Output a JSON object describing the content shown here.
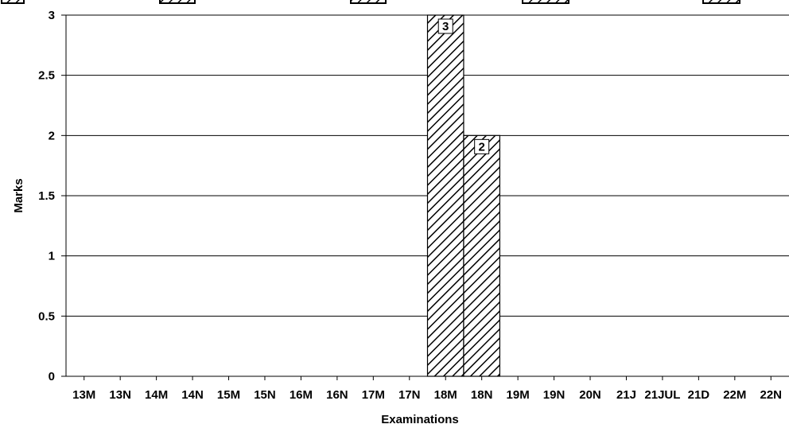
{
  "chart_data": {
    "type": "bar",
    "categories": [
      "13M",
      "13N",
      "14M",
      "14N",
      "15M",
      "15N",
      "16M",
      "16N",
      "17M",
      "17N",
      "18M",
      "18N",
      "19M",
      "19N",
      "20N",
      "21J",
      "21JUL",
      "21D",
      "22M",
      "22N"
    ],
    "values": [
      null,
      null,
      null,
      null,
      null,
      null,
      null,
      null,
      null,
      null,
      3,
      2,
      null,
      null,
      null,
      null,
      null,
      null,
      null,
      null
    ],
    "data_labels": [
      "",
      "",
      "",
      "",
      "",
      "",
      "",
      "",
      "",
      "",
      "3",
      "2",
      "",
      "",
      "",
      "",
      "",
      "",
      "",
      ""
    ],
    "xlabel": "Examinations",
    "ylabel": "Marks",
    "ylim": [
      0,
      3
    ],
    "yticks": [
      "0",
      "0.5",
      "1",
      "1.5",
      "2",
      "2.5",
      "3"
    ],
    "grid": true,
    "bar_pattern": "diagonal-hatch",
    "legend": "top, partially cut off"
  }
}
